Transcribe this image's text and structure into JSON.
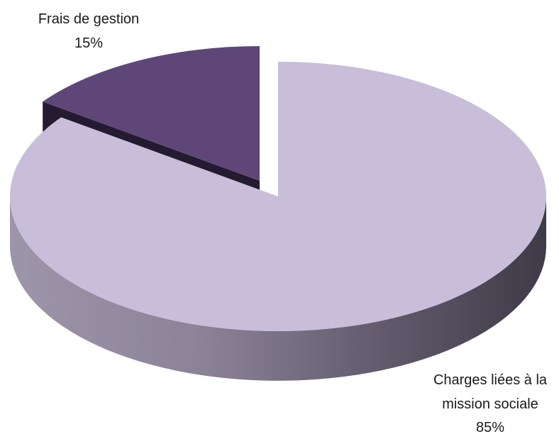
{
  "chart_data": {
    "type": "pie",
    "title": "",
    "slices": [
      {
        "label_lines": [
          "Charges liées à la",
          "mission sociale"
        ],
        "percent_label": "85%",
        "value": 85,
        "color": "#c8bed9"
      },
      {
        "label_lines": [
          "Frais de gestion"
        ],
        "percent_label": "15%",
        "value": 15,
        "color": "#5e4778"
      }
    ],
    "style": "3d-exploded",
    "legend": "none"
  }
}
